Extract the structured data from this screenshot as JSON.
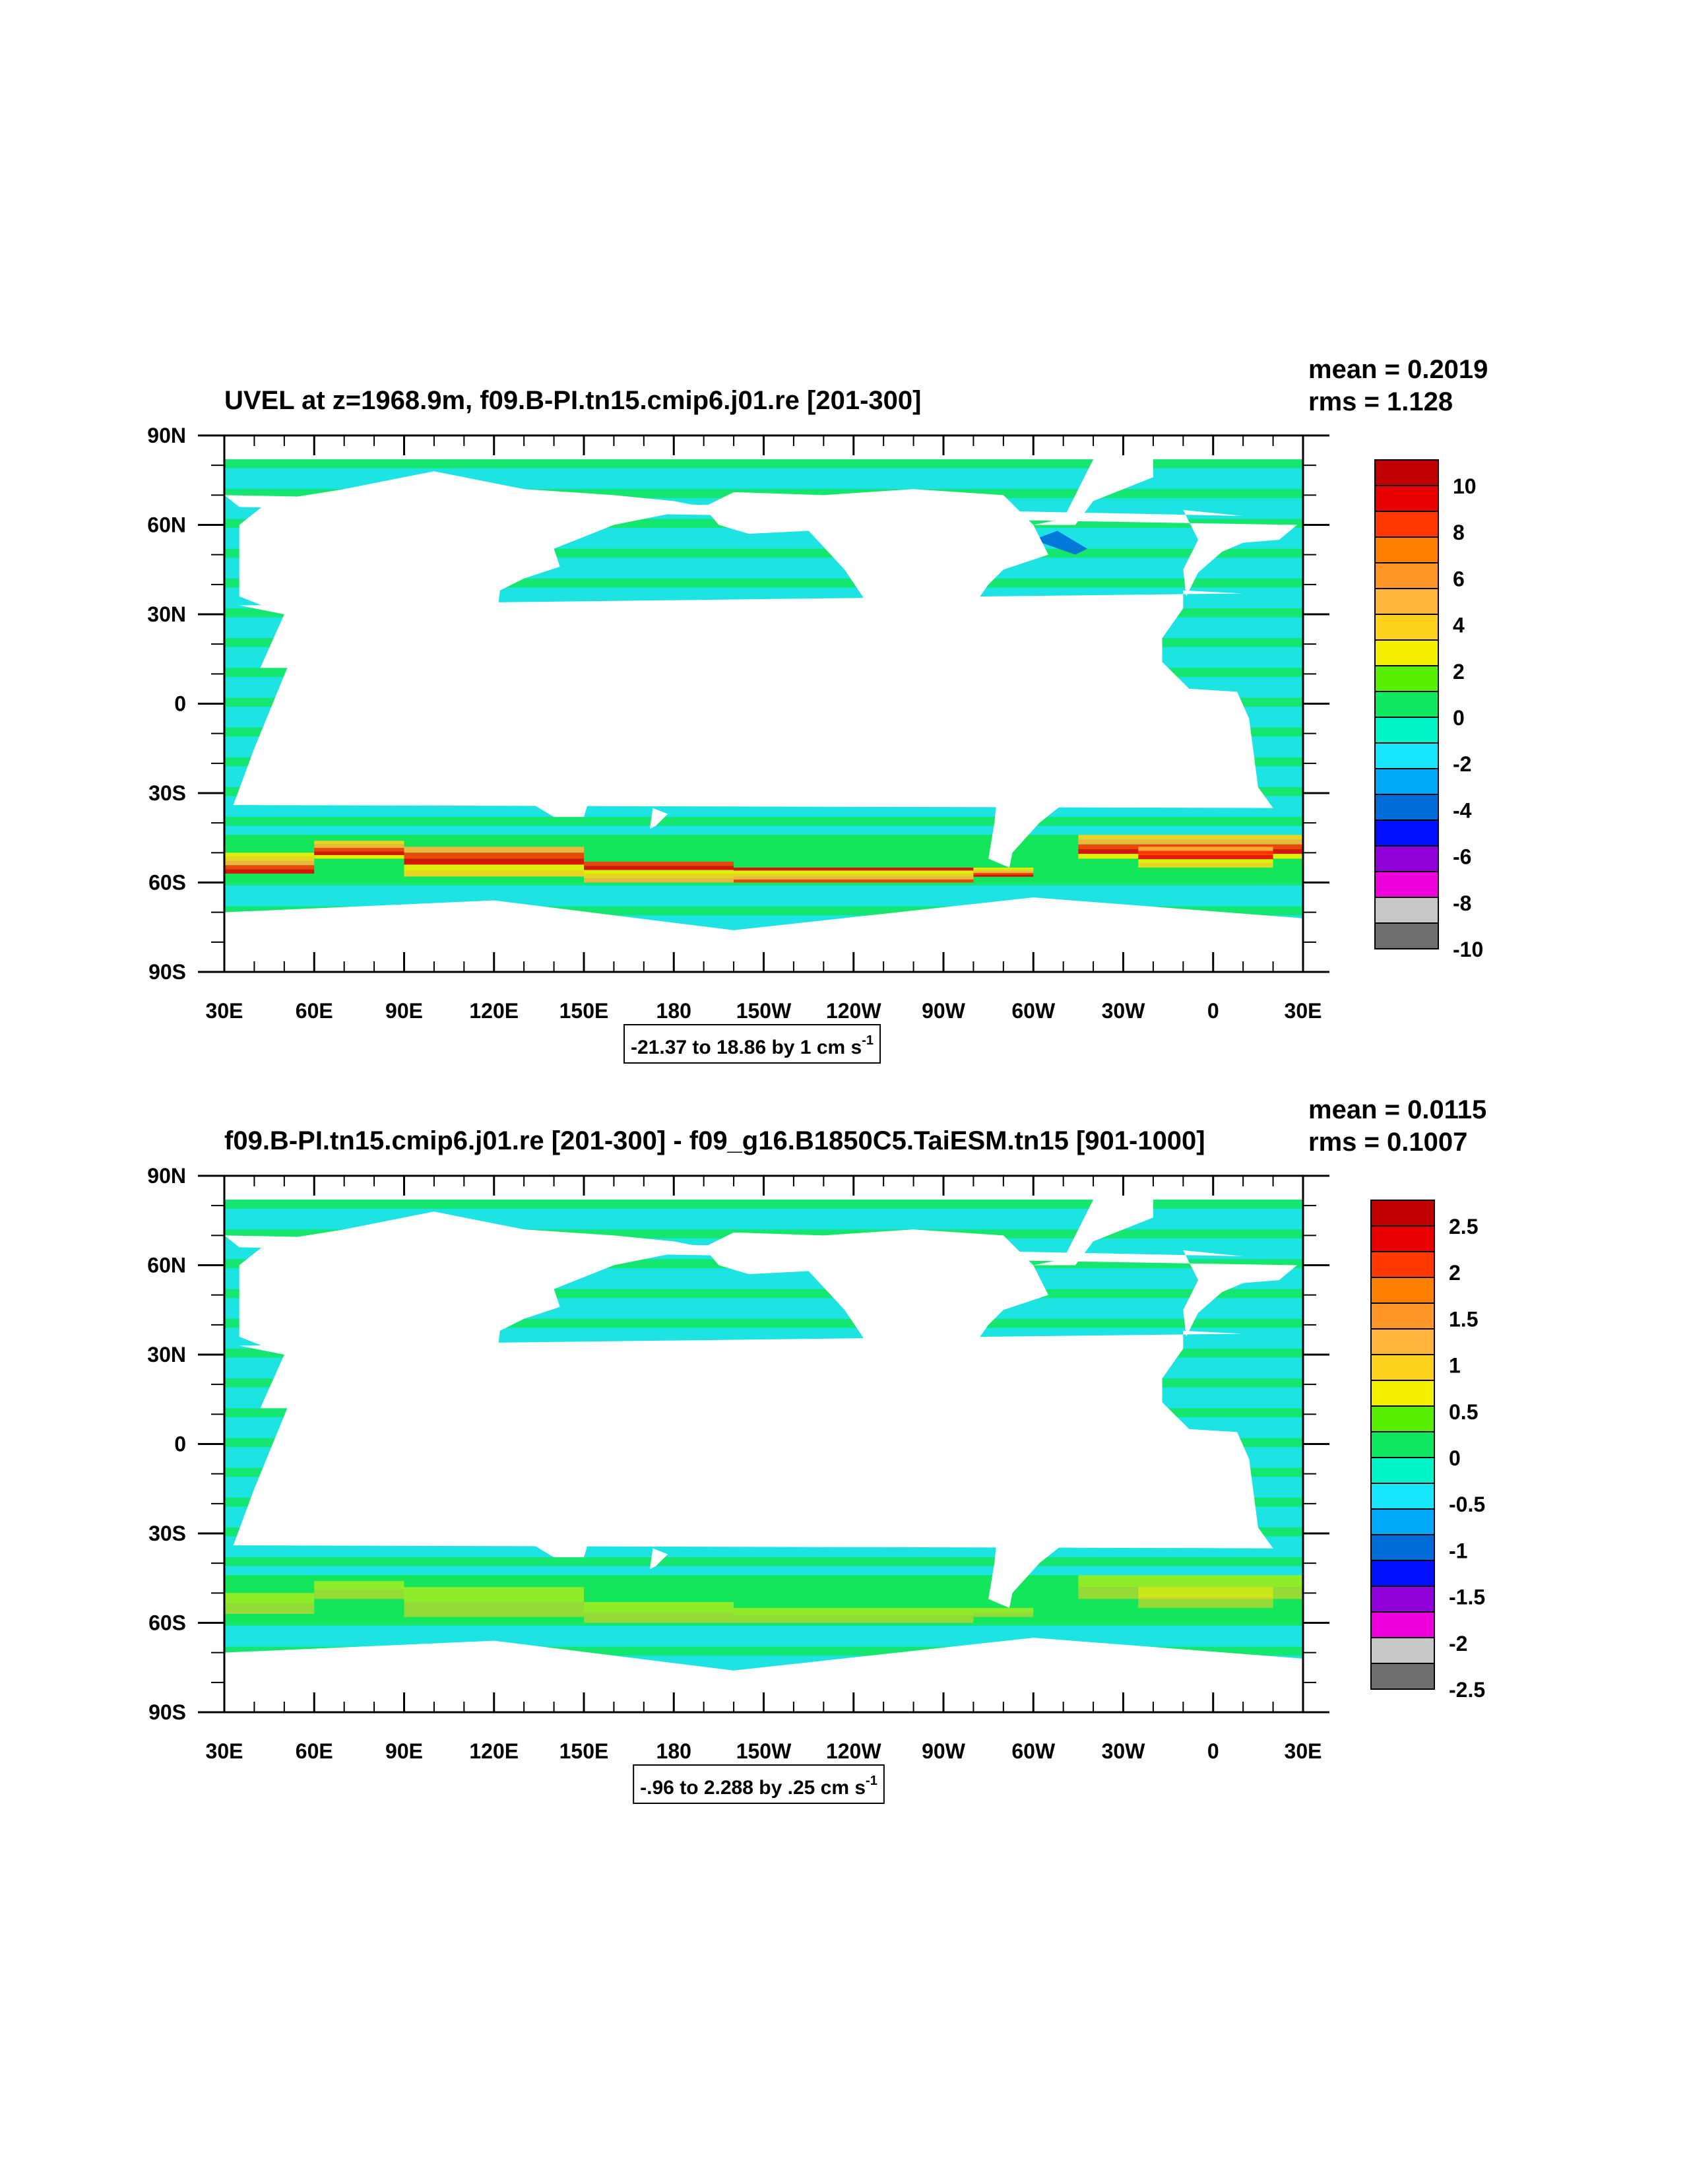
{
  "colors": {
    "land": "#ffffff",
    "ocean_bg": "#1de3e3",
    "zero_band": "#13e65a",
    "strong_pos": "#f5f000",
    "palette": [
      "#6e6e6e",
      "#c8c8c8",
      "#ee00dd",
      "#9000d8",
      "#0010ff",
      "#006cd8",
      "#00a8f8",
      "#18e6ff",
      "#00f5c8",
      "#10e860",
      "#58f000",
      "#f5f000",
      "#ffd21e",
      "#ffb43c",
      "#ff9628",
      "#ff8000",
      "#ff3700",
      "#e80000",
      "#c00000"
    ]
  },
  "chart_data": [
    {
      "type": "heatmap",
      "title": "UVEL at z=1968.9m, f09.B-PI.tn15.cmip6.j01.re [201-300]",
      "stats": [
        "mean = 0.2019",
        "rms = 1.128"
      ],
      "x_tick_labels": [
        "30E",
        "60E",
        "90E",
        "120E",
        "150E",
        "180",
        "150W",
        "120W",
        "90W",
        "60W",
        "30W",
        "0",
        "30E"
      ],
      "y_tick_labels": [
        "90N",
        "60N",
        "30N",
        "0",
        "30S",
        "60S",
        "90S"
      ],
      "xlim": [
        30,
        390
      ],
      "ylim": [
        -90,
        90
      ],
      "colorbar_labels": [
        "10",
        "8",
        "6",
        "4",
        "2",
        "0",
        "-2",
        "-4",
        "-6",
        "-8",
        "-10"
      ],
      "colorbar_range": [
        -10,
        10
      ],
      "contour_info": "-21.37 to 18.86 by 1 cm s",
      "contour_info_sup": "-1",
      "acc_intensity": 1.0
    },
    {
      "type": "heatmap",
      "title": "f09.B-PI.tn15.cmip6.j01.re [201-300] - f09_g16.B1850C5.TaiESM.tn15 [901-1000]",
      "stats": [
        "mean = 0.0115",
        "rms = 0.1007"
      ],
      "x_tick_labels": [
        "30E",
        "60E",
        "90E",
        "120E",
        "150E",
        "180",
        "150W",
        "120W",
        "90W",
        "60W",
        "30W",
        "0",
        "30E"
      ],
      "y_tick_labels": [
        "90N",
        "60N",
        "30N",
        "0",
        "30S",
        "60S",
        "90S"
      ],
      "xlim": [
        30,
        390
      ],
      "ylim": [
        -90,
        90
      ],
      "colorbar_labels": [
        "2.5",
        "2",
        "1.5",
        "1",
        "0.5",
        "0",
        "-0.5",
        "-1",
        "-1.5",
        "-2",
        "-2.5"
      ],
      "colorbar_range": [
        -2.5,
        2.5
      ],
      "contour_info": "-.96 to 2.288 by .25 cm s",
      "contour_info_sup": "-1",
      "acc_intensity": 0.35
    }
  ]
}
